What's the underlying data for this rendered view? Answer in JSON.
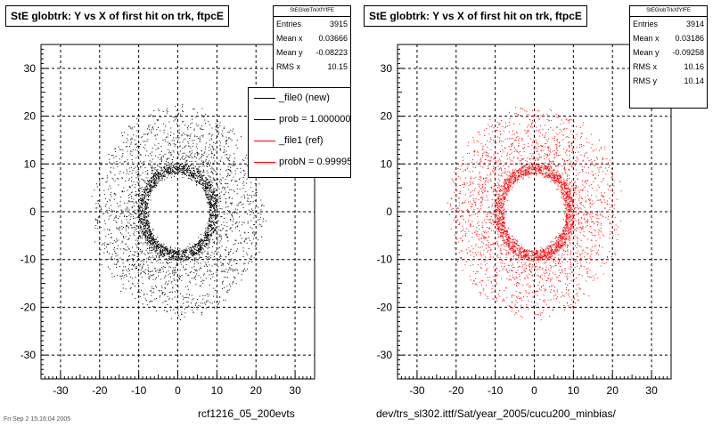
{
  "chart_data": [
    {
      "type": "scatter",
      "title": "StE globtrk: Y vs X of first hit on trk, ftpcE",
      "xlim": [
        -35,
        35
      ],
      "ylim": [
        -35,
        35
      ],
      "xticks": [
        -30,
        -20,
        -10,
        0,
        10,
        20,
        30
      ],
      "yticks": [
        -30,
        -20,
        -10,
        0,
        10,
        20,
        30
      ],
      "grid": true,
      "color": "#000000",
      "stats": {
        "name": "StEGlobTrkXfYfFE",
        "rows": [
          {
            "label": "Entries",
            "value": "3915"
          },
          {
            "label": "Mean x",
            "value": "0.03666"
          },
          {
            "label": "Mean y",
            "value": "-0.08223"
          },
          {
            "label": "RMS x",
            "value": "10.15"
          }
        ]
      },
      "legend": {
        "position": "right",
        "entries": [
          {
            "label": "_file0 (new)",
            "color": "#000000"
          },
          {
            "label": "prob = 1.000000",
            "color": "#000000"
          },
          {
            "label": "_file1 (ref)",
            "color": "#ff0000"
          },
          {
            "label": "probN = 0.999950",
            "color": "#ff0000"
          }
        ]
      },
      "distribution": {
        "inner_radius": 8,
        "peak_radius": 9,
        "outer_radius": 22,
        "n_points": 3915
      },
      "footer": "rcf1216_05_200evts"
    },
    {
      "type": "scatter",
      "title": "StE globtrk: Y vs X of first hit on trk, ftpcE",
      "xlim": [
        -35,
        35
      ],
      "ylim": [
        -35,
        35
      ],
      "xticks": [
        -30,
        -20,
        -10,
        0,
        10,
        20,
        30
      ],
      "yticks": [
        -30,
        -20,
        -10,
        0,
        10,
        20,
        30
      ],
      "grid": true,
      "color": "#ff0000",
      "stats": {
        "name": "StEGlobTrkXfYfFE",
        "rows": [
          {
            "label": "Entries",
            "value": "3914"
          },
          {
            "label": "Mean x",
            "value": "0.03186"
          },
          {
            "label": "Mean y",
            "value": "-0.09258"
          },
          {
            "label": "RMS x",
            "value": "10.16"
          },
          {
            "label": "RMS y",
            "value": "10.14"
          }
        ]
      },
      "distribution": {
        "inner_radius": 8,
        "peak_radius": 9,
        "outer_radius": 22,
        "n_points": 3914
      },
      "footer": "dev/trs_sl302.ittf/Sat/year_2005/cucu200_minbias/"
    }
  ],
  "corner_text": "Fri Sep 2 15:16:04 2005"
}
